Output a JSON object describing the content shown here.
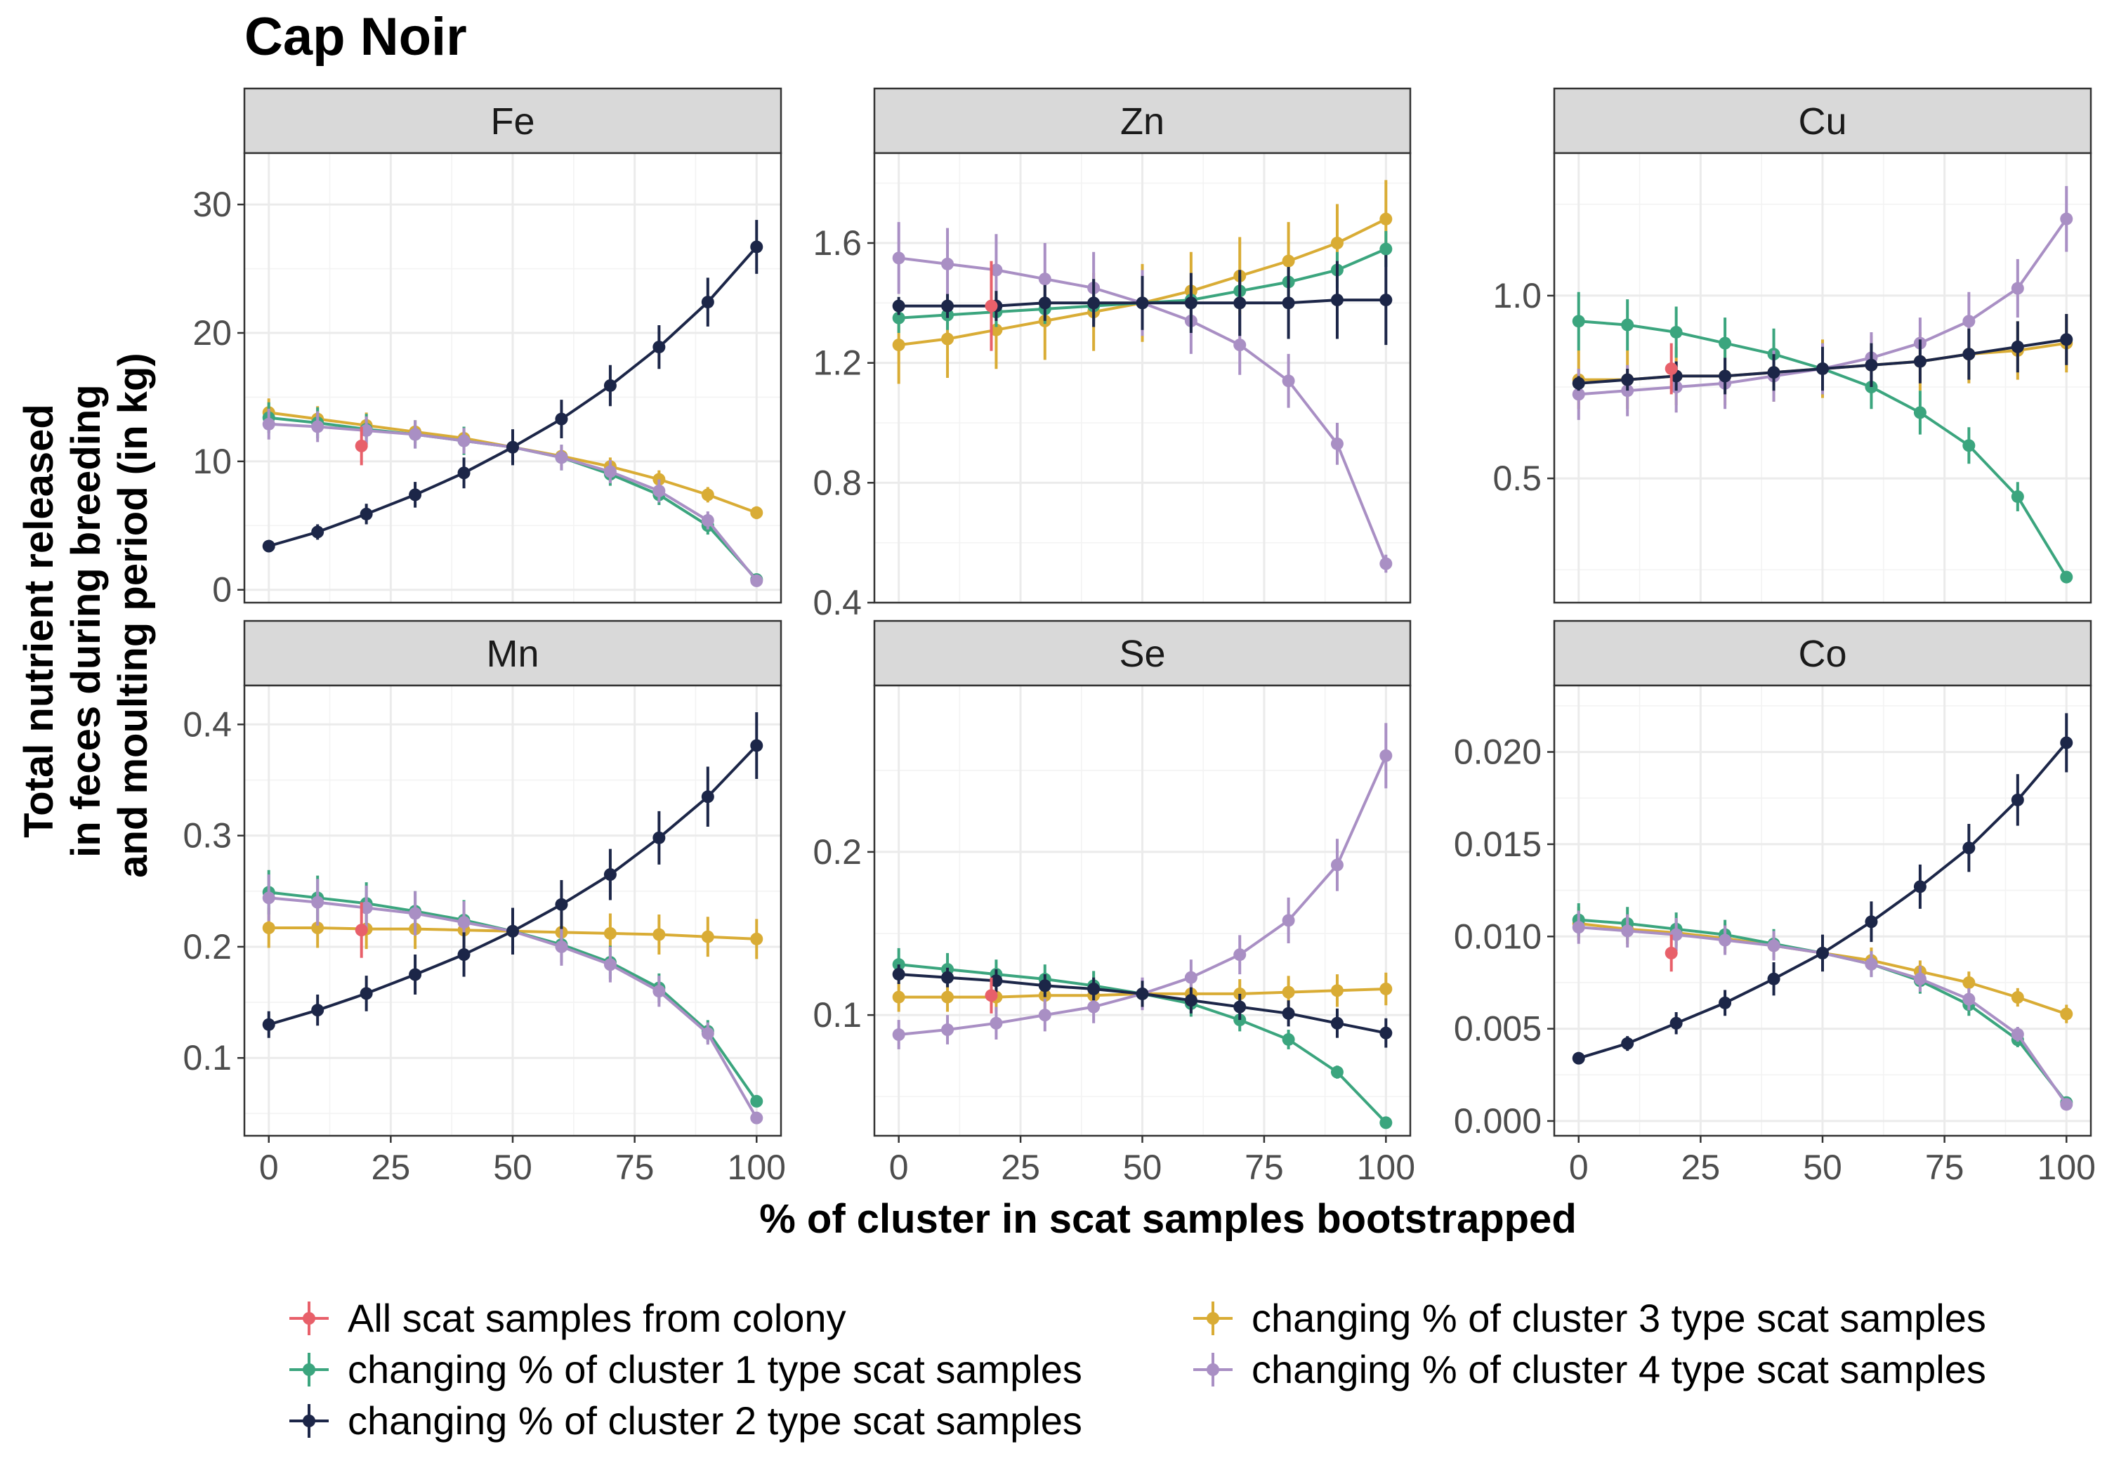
{
  "chart_data": {
    "type": "line",
    "title": "Cap Noir",
    "xlabel": "% of cluster in scat samples bootstrapped",
    "ylabel_lines": [
      "Total nutrient released",
      "in feces during breeding",
      "and moulting period (in kg)"
    ],
    "x": [
      0,
      10,
      20,
      30,
      40,
      50,
      60,
      70,
      80,
      90,
      100
    ],
    "x_ticks": [
      0,
      25,
      50,
      75,
      100
    ],
    "legend_position": "bottom",
    "series_styles": [
      {
        "key": "all",
        "name": "All scat samples from colony",
        "color": "#E8606A"
      },
      {
        "key": "c1",
        "name": "changing % of cluster 1 type scat samples",
        "color": "#3BA57E"
      },
      {
        "key": "c2",
        "name": "changing % of cluster 2 type scat samples",
        "color": "#1C2648"
      },
      {
        "key": "c3",
        "name": "changing % of cluster 3 type scat samples",
        "color": "#D9AC35"
      },
      {
        "key": "c4",
        "name": "changing % of cluster 4 type scat samples",
        "color": "#A98FC4"
      }
    ],
    "panels": [
      {
        "name": "Fe",
        "ylim": [
          -1,
          34
        ],
        "y_ticks": [
          0,
          10,
          20,
          30
        ],
        "y_tick_labels": [
          "0",
          "10",
          "20",
          "30"
        ],
        "all": {
          "x": 19,
          "y": 11.2,
          "err": 1.5
        },
        "series": {
          "c1": {
            "y": [
              13.4,
              13.0,
              12.5,
              12.1,
              11.6,
              11.1,
              10.3,
              9.0,
              7.4,
              5.0,
              0.8
            ],
            "err": [
              1.2,
              1.2,
              1.2,
              1.1,
              1.1,
              1.0,
              1.0,
              0.9,
              0.8,
              0.7,
              0.3
            ]
          },
          "c2": {
            "y": [
              3.4,
              4.5,
              5.9,
              7.4,
              9.1,
              11.1,
              13.3,
              15.9,
              18.9,
              22.4,
              26.7
            ],
            "err": [
              0.4,
              0.6,
              0.8,
              1.0,
              1.2,
              1.4,
              1.5,
              1.6,
              1.7,
              1.9,
              2.1
            ]
          },
          "c3": {
            "y": [
              13.8,
              13.3,
              12.8,
              12.3,
              11.8,
              11.1,
              10.4,
              9.6,
              8.6,
              7.4,
              6.0
            ],
            "err": [
              1.1,
              1.0,
              1.0,
              0.9,
              0.9,
              0.8,
              0.8,
              0.7,
              0.7,
              0.6,
              0.5
            ]
          },
          "c4": {
            "y": [
              12.9,
              12.7,
              12.4,
              12.1,
              11.6,
              11.1,
              10.3,
              9.2,
              7.7,
              5.4,
              0.7
            ],
            "err": [
              1.2,
              1.2,
              1.1,
              1.1,
              1.0,
              1.0,
              1.0,
              0.9,
              0.9,
              0.7,
              0.2
            ]
          }
        }
      },
      {
        "name": "Zn",
        "ylim": [
          0.4,
          1.9
        ],
        "y_ticks": [
          0.4,
          0.8,
          1.2,
          1.6
        ],
        "y_tick_labels": [
          "0.4",
          "0.8",
          "1.2",
          "1.6"
        ],
        "all": {
          "x": 19,
          "y": 1.39,
          "err": 0.15
        },
        "series": {
          "c1": {
            "y": [
              1.35,
              1.36,
              1.37,
              1.38,
              1.39,
              1.4,
              1.41,
              1.44,
              1.47,
              1.51,
              1.58
            ],
            "err": [
              0.05,
              0.05,
              0.05,
              0.05,
              0.05,
              0.05,
              0.05,
              0.05,
              0.05,
              0.06,
              0.06
            ]
          },
          "c2": {
            "y": [
              1.39,
              1.39,
              1.39,
              1.4,
              1.4,
              1.4,
              1.4,
              1.4,
              1.4,
              1.41,
              1.41
            ],
            "err": [
              0.03,
              0.04,
              0.05,
              0.06,
              0.08,
              0.09,
              0.1,
              0.11,
              0.12,
              0.13,
              0.15
            ]
          },
          "c3": {
            "y": [
              1.26,
              1.28,
              1.31,
              1.34,
              1.37,
              1.4,
              1.44,
              1.49,
              1.54,
              1.6,
              1.68
            ],
            "err": [
              0.13,
              0.13,
              0.13,
              0.13,
              0.13,
              0.13,
              0.13,
              0.13,
              0.13,
              0.13,
              0.13
            ]
          },
          "c4": {
            "y": [
              1.55,
              1.53,
              1.51,
              1.48,
              1.45,
              1.4,
              1.34,
              1.26,
              1.14,
              0.93,
              0.53
            ],
            "err": [
              0.12,
              0.12,
              0.12,
              0.12,
              0.12,
              0.11,
              0.11,
              0.1,
              0.09,
              0.07,
              0.03
            ]
          }
        }
      },
      {
        "name": "Cu",
        "ylim": [
          0.16,
          1.39
        ],
        "y_ticks": [
          0.5,
          1.0
        ],
        "y_tick_labels": [
          "0.5",
          "1.0"
        ],
        "all": {
          "x": 19,
          "y": 0.8,
          "err": 0.07
        },
        "series": {
          "c1": {
            "y": [
              0.93,
              0.92,
              0.9,
              0.87,
              0.84,
              0.8,
              0.75,
              0.68,
              0.59,
              0.45,
              0.23
            ],
            "err": [
              0.08,
              0.07,
              0.07,
              0.07,
              0.07,
              0.07,
              0.06,
              0.06,
              0.05,
              0.04,
              0.01
            ]
          },
          "c2": {
            "y": [
              0.76,
              0.77,
              0.78,
              0.78,
              0.79,
              0.8,
              0.81,
              0.82,
              0.84,
              0.86,
              0.88
            ],
            "err": [
              0.02,
              0.03,
              0.04,
              0.05,
              0.05,
              0.06,
              0.06,
              0.06,
              0.07,
              0.07,
              0.07
            ]
          },
          "c3": {
            "y": [
              0.77,
              0.77,
              0.78,
              0.78,
              0.79,
              0.8,
              0.81,
              0.82,
              0.84,
              0.85,
              0.87
            ],
            "err": [
              0.08,
              0.08,
              0.08,
              0.08,
              0.08,
              0.08,
              0.08,
              0.08,
              0.08,
              0.08,
              0.08
            ]
          },
          "c4": {
            "y": [
              0.73,
              0.74,
              0.75,
              0.76,
              0.78,
              0.8,
              0.83,
              0.87,
              0.93,
              1.02,
              1.21
            ],
            "err": [
              0.07,
              0.07,
              0.07,
              0.07,
              0.07,
              0.07,
              0.07,
              0.07,
              0.08,
              0.08,
              0.09
            ]
          }
        }
      },
      {
        "name": "Mn",
        "ylim": [
          0.03,
          0.435
        ],
        "y_ticks": [
          0.1,
          0.2,
          0.3,
          0.4
        ],
        "y_tick_labels": [
          "0.1",
          "0.2",
          "0.3",
          "0.4"
        ],
        "all": {
          "x": 19,
          "y": 0.215,
          "err": 0.025
        },
        "series": {
          "c1": {
            "y": [
              0.249,
              0.244,
              0.239,
              0.232,
              0.224,
              0.214,
              0.202,
              0.186,
              0.163,
              0.124,
              0.061
            ],
            "err": [
              0.02,
              0.02,
              0.019,
              0.018,
              0.018,
              0.017,
              0.016,
              0.015,
              0.013,
              0.01,
              0.004
            ]
          },
          "c2": {
            "y": [
              0.13,
              0.143,
              0.158,
              0.175,
              0.193,
              0.214,
              0.238,
              0.265,
              0.298,
              0.335,
              0.381
            ],
            "err": [
              0.012,
              0.014,
              0.016,
              0.018,
              0.02,
              0.021,
              0.022,
              0.023,
              0.024,
              0.027,
              0.03
            ]
          },
          "c3": {
            "y": [
              0.217,
              0.217,
              0.216,
              0.216,
              0.215,
              0.214,
              0.213,
              0.212,
              0.211,
              0.209,
              0.207
            ],
            "err": [
              0.018,
              0.018,
              0.018,
              0.018,
              0.018,
              0.018,
              0.018,
              0.018,
              0.018,
              0.018,
              0.018
            ]
          },
          "c4": {
            "y": [
              0.244,
              0.24,
              0.235,
              0.23,
              0.222,
              0.214,
              0.2,
              0.184,
              0.16,
              0.122,
              0.046
            ],
            "err": [
              0.021,
              0.021,
              0.02,
              0.02,
              0.019,
              0.018,
              0.017,
              0.016,
              0.014,
              0.01,
              0.003
            ]
          }
        }
      },
      {
        "name": "Se",
        "ylim": [
          0.026,
          0.302
        ],
        "y_ticks": [
          0.1,
          0.2
        ],
        "y_tick_labels": [
          "0.1",
          "0.2"
        ],
        "all": {
          "x": 19,
          "y": 0.112,
          "err": 0.011
        },
        "series": {
          "c1": {
            "y": [
              0.131,
              0.128,
              0.125,
              0.122,
              0.118,
              0.113,
              0.107,
              0.097,
              0.085,
              0.065,
              0.034
            ],
            "err": [
              0.01,
              0.01,
              0.009,
              0.009,
              0.009,
              0.008,
              0.008,
              0.007,
              0.006,
              0.004,
              0.002
            ]
          },
          "c2": {
            "y": [
              0.125,
              0.123,
              0.121,
              0.118,
              0.116,
              0.113,
              0.109,
              0.105,
              0.101,
              0.095,
              0.089
            ],
            "err": [
              0.006,
              0.006,
              0.007,
              0.007,
              0.007,
              0.008,
              0.008,
              0.008,
              0.008,
              0.009,
              0.009
            ]
          },
          "c3": {
            "y": [
              0.111,
              0.111,
              0.111,
              0.112,
              0.112,
              0.113,
              0.113,
              0.113,
              0.114,
              0.115,
              0.116
            ],
            "err": [
              0.009,
              0.009,
              0.009,
              0.009,
              0.009,
              0.009,
              0.009,
              0.009,
              0.01,
              0.01,
              0.01
            ]
          },
          "c4": {
            "y": [
              0.088,
              0.091,
              0.095,
              0.1,
              0.105,
              0.113,
              0.123,
              0.137,
              0.158,
              0.192,
              0.259
            ],
            "err": [
              0.009,
              0.009,
              0.01,
              0.01,
              0.01,
              0.01,
              0.011,
              0.012,
              0.014,
              0.016,
              0.02
            ]
          }
        }
      },
      {
        "name": "Co",
        "ylim": [
          -0.0008,
          0.0236
        ],
        "y_ticks": [
          0.0,
          0.005,
          0.01,
          0.015,
          0.02
        ],
        "y_tick_labels": [
          "0.000",
          "0.005",
          "0.010",
          "0.015",
          "0.020"
        ],
        "all": {
          "x": 19,
          "y": 0.0091,
          "err": 0.001
        },
        "series": {
          "c1": {
            "y": [
              0.0109,
              0.0107,
              0.0104,
              0.0101,
              0.0096,
              0.0091,
              0.0085,
              0.0076,
              0.0063,
              0.0044,
              0.001
            ],
            "err": [
              0.0009,
              0.0009,
              0.0009,
              0.0008,
              0.0008,
              0.0008,
              0.0007,
              0.0007,
              0.0006,
              0.0004,
              0.0001
            ]
          },
          "c2": {
            "y": [
              0.0034,
              0.0042,
              0.0053,
              0.0064,
              0.0077,
              0.0091,
              0.0108,
              0.0127,
              0.0148,
              0.0174,
              0.0205
            ],
            "err": [
              0.0003,
              0.0004,
              0.0006,
              0.0007,
              0.0009,
              0.001,
              0.0011,
              0.0012,
              0.0013,
              0.0014,
              0.0016
            ]
          },
          "c3": {
            "y": [
              0.0107,
              0.0104,
              0.0102,
              0.0099,
              0.0095,
              0.0091,
              0.0087,
              0.0081,
              0.0075,
              0.0067,
              0.0058
            ],
            "err": [
              0.0009,
              0.0008,
              0.0008,
              0.0008,
              0.0007,
              0.0007,
              0.0007,
              0.0006,
              0.0006,
              0.0005,
              0.0005
            ]
          },
          "c4": {
            "y": [
              0.0105,
              0.0103,
              0.0101,
              0.0098,
              0.0095,
              0.0091,
              0.0085,
              0.0077,
              0.0066,
              0.0047,
              0.0009
            ],
            "err": [
              0.0009,
              0.0009,
              0.0009,
              0.0008,
              0.0008,
              0.0008,
              0.0007,
              0.0007,
              0.0006,
              0.0004,
              0.0001
            ]
          }
        }
      }
    ]
  }
}
